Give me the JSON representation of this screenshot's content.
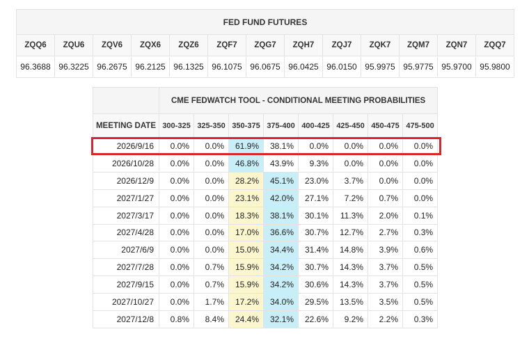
{
  "futures": {
    "title": "FED FUND FUTURES",
    "codes": [
      "ZQQ6",
      "ZQU6",
      "ZQV6",
      "ZQX6",
      "ZQZ6",
      "ZQF7",
      "ZQG7",
      "ZQH7",
      "ZQJ7",
      "ZQK7",
      "ZQM7",
      "ZQN7",
      "ZQQ7"
    ],
    "prices": [
      "96.3688",
      "96.3225",
      "96.2675",
      "96.2125",
      "96.1325",
      "96.1075",
      "96.0675",
      "96.0425",
      "96.0150",
      "95.9975",
      "95.9775",
      "95.9700",
      "95.9800"
    ]
  },
  "fedwatch": {
    "title": "CME FEDWATCH TOOL - CONDITIONAL MEETING PROBABILITIES",
    "date_header": "MEETING DATE",
    "ranges": [
      "300-325",
      "325-350",
      "350-375",
      "375-400",
      "400-425",
      "425-450",
      "450-475",
      "475-500"
    ],
    "highlight_colors": {
      "blue": "#c8eef8",
      "yellow": "#fbf6cd",
      "box": "#d9252b"
    },
    "rows": [
      {
        "date": "2026/9/16",
        "values": [
          "0.0%",
          "0.0%",
          "61.9%",
          "38.1%",
          "0.0%",
          "0.0%",
          "0.0%",
          "0.0%"
        ],
        "highlight": {
          "2": "blue"
        }
      },
      {
        "date": "2026/10/28",
        "values": [
          "0.0%",
          "0.0%",
          "46.8%",
          "43.9%",
          "9.3%",
          "0.0%",
          "0.0%",
          "0.0%"
        ],
        "highlight": {
          "2": "blue"
        }
      },
      {
        "date": "2026/12/9",
        "values": [
          "0.0%",
          "0.0%",
          "28.2%",
          "45.1%",
          "23.0%",
          "3.7%",
          "0.0%",
          "0.0%"
        ],
        "highlight": {
          "2": "yellow",
          "3": "blue"
        }
      },
      {
        "date": "2027/1/27",
        "values": [
          "0.0%",
          "0.0%",
          "23.1%",
          "42.0%",
          "27.1%",
          "7.2%",
          "0.7%",
          "0.0%"
        ],
        "highlight": {
          "2": "yellow",
          "3": "blue"
        }
      },
      {
        "date": "2027/3/17",
        "values": [
          "0.0%",
          "0.0%",
          "18.3%",
          "38.1%",
          "30.1%",
          "11.3%",
          "2.0%",
          "0.1%"
        ],
        "highlight": {
          "2": "yellow",
          "3": "blue"
        }
      },
      {
        "date": "2027/4/28",
        "values": [
          "0.0%",
          "0.0%",
          "17.0%",
          "36.6%",
          "30.7%",
          "12.7%",
          "2.7%",
          "0.3%"
        ],
        "highlight": {
          "2": "yellow",
          "3": "blue"
        }
      },
      {
        "date": "2027/6/9",
        "values": [
          "0.0%",
          "0.0%",
          "15.0%",
          "34.4%",
          "31.4%",
          "14.8%",
          "3.9%",
          "0.6%"
        ],
        "highlight": {
          "2": "yellow",
          "3": "blue"
        }
      },
      {
        "date": "2027/7/28",
        "values": [
          "0.0%",
          "0.7%",
          "15.9%",
          "34.2%",
          "30.7%",
          "14.3%",
          "3.7%",
          "0.5%"
        ],
        "highlight": {
          "2": "yellow",
          "3": "blue"
        }
      },
      {
        "date": "2027/9/15",
        "values": [
          "0.0%",
          "0.7%",
          "15.9%",
          "34.2%",
          "30.6%",
          "14.3%",
          "3.7%",
          "0.5%"
        ],
        "highlight": {
          "2": "yellow",
          "3": "blue"
        }
      },
      {
        "date": "2027/10/27",
        "values": [
          "0.0%",
          "1.7%",
          "17.2%",
          "34.0%",
          "29.5%",
          "13.5%",
          "3.5%",
          "0.5%"
        ],
        "highlight": {
          "2": "yellow",
          "3": "blue"
        }
      },
      {
        "date": "2027/12/8",
        "values": [
          "0.8%",
          "8.4%",
          "24.4%",
          "32.1%",
          "22.6%",
          "9.2%",
          "2.2%",
          "0.3%"
        ],
        "highlight": {
          "2": "yellow",
          "3": "blue"
        }
      }
    ]
  }
}
